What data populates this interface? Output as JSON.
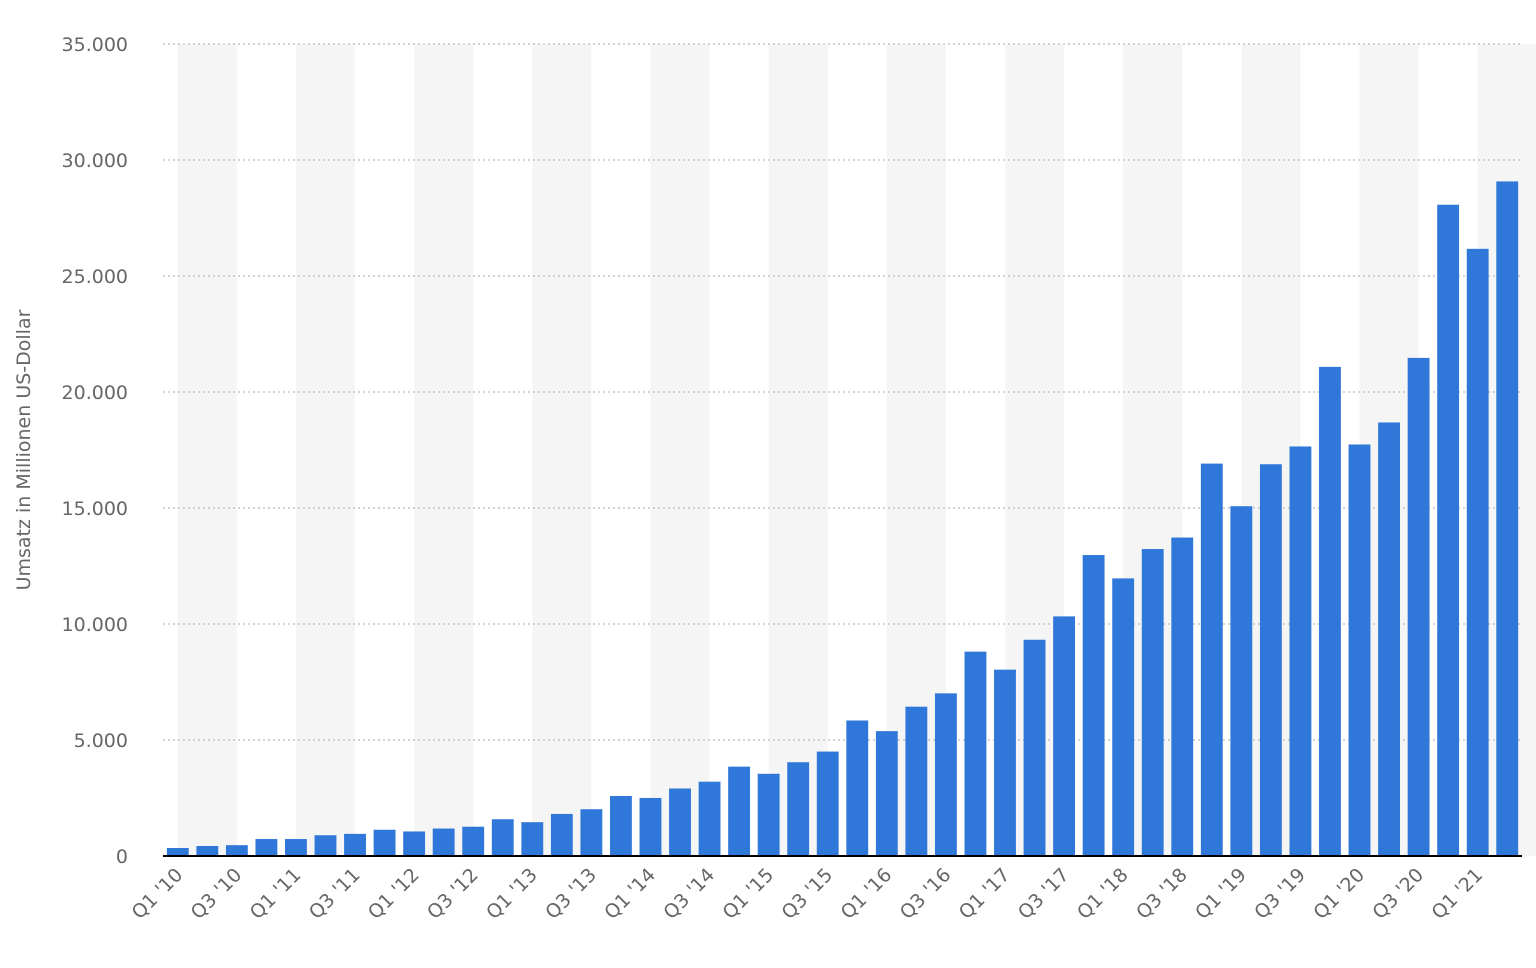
{
  "chart_data": {
    "type": "bar",
    "y_axis_title": "Umsatz in Millionen US-Dollar",
    "categories": [
      "Q1 '10",
      null,
      "Q3 '10",
      null,
      "Q1 '11",
      null,
      "Q3 '11",
      null,
      "Q1 '12",
      null,
      "Q3 '12",
      null,
      "Q1 '13",
      null,
      "Q3 '13",
      null,
      "Q1 '14",
      null,
      "Q3 '14",
      null,
      "Q1 '15",
      null,
      "Q3 '15",
      null,
      "Q1 '16",
      null,
      "Q3 '16",
      null,
      "Q1 '17",
      null,
      "Q3 '17",
      null,
      "Q1 '18",
      null,
      "Q3 '18",
      null,
      "Q1 '19",
      null,
      "Q3 '19",
      null,
      "Q1 '20",
      null,
      "Q3 '20",
      null,
      "Q1 '21",
      null
    ],
    "values": [
      345,
      431,
      467,
      731,
      731,
      895,
      954,
      1131,
      1058,
      1184,
      1262,
      1585,
      1458,
      1813,
      2016,
      2585,
      2502,
      2910,
      3203,
      3851,
      3543,
      4042,
      4501,
      5841,
      5382,
      6436,
      7011,
      8809,
      8032,
      9321,
      10328,
      12972,
      11966,
      13231,
      13727,
      16914,
      15077,
      16886,
      17652,
      21082,
      17737,
      18687,
      21470,
      28072,
      26171,
      29077
    ],
    "color": "#2f78d9",
    "ylim": [
      0,
      35000
    ],
    "yticks": [
      0,
      {
        "value": 5000,
        "label": "5.000"
      },
      {
        "value": 10000,
        "label": "10.000"
      },
      {
        "value": 15000,
        "label": "15.000"
      },
      {
        "value": 20000,
        "label": "20.000"
      },
      {
        "value": 25000,
        "label": "25.000"
      },
      {
        "value": 30000,
        "label": "30.000"
      },
      {
        "value": 35000,
        "label": "35.000"
      }
    ],
    "grid": true
  }
}
